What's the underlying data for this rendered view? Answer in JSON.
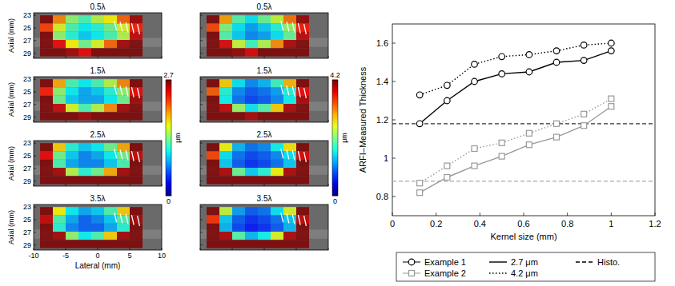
{
  "chart_data": [
    {
      "type": "heatmap",
      "title": "0.5λ",
      "xlim": [
        -10,
        10
      ],
      "ylim": [
        22.6,
        29.8
      ],
      "xticks": [
        -10,
        -5,
        0,
        5,
        10
      ],
      "yticks": [
        23,
        25,
        27,
        29
      ],
      "tick_labels": "y",
      "y_label": "Axial (mm)",
      "zlim": [
        0,
        2.7
      ],
      "x_edges": [
        -9,
        -7,
        -5,
        -3,
        -1,
        1,
        3,
        5,
        7
      ],
      "y_edges": [
        23,
        24.3,
        25.6,
        26.9,
        28.2,
        29.5
      ],
      "cells": [
        [
          2.7,
          2.0,
          1.4,
          1.2,
          1.5,
          1.7,
          2.1,
          2.6
        ],
        [
          2.2,
          1.6,
          1.2,
          1.0,
          1.1,
          1.3,
          1.6,
          2.3
        ],
        [
          2.7,
          1.4,
          1.1,
          0.9,
          1.0,
          1.2,
          1.5,
          2.5
        ],
        [
          2.7,
          2.4,
          1.7,
          1.3,
          1.6,
          2.1,
          2.6,
          2.7
        ],
        [
          2.7,
          2.7,
          2.6,
          2.4,
          2.7,
          2.7,
          2.7,
          2.7
        ]
      ]
    },
    {
      "type": "heatmap",
      "title": "1.5λ",
      "xlim": [
        -10,
        10
      ],
      "ylim": [
        22.6,
        29.8
      ],
      "xticks": [
        -10,
        -5,
        0,
        5,
        10
      ],
      "yticks": [
        23,
        25,
        27,
        29
      ],
      "tick_labels": "y",
      "y_label": "Axial (mm)",
      "zlim": [
        0,
        2.7
      ],
      "colorbar": {
        "ticks": [
          0,
          2.7
        ],
        "label": "μm"
      },
      "x_edges": [
        -9,
        -7,
        -5,
        -3,
        -1,
        1,
        3,
        5,
        7
      ],
      "y_edges": [
        23,
        24.3,
        25.6,
        26.9,
        28.2,
        29.5
      ],
      "cells": [
        [
          2.7,
          1.9,
          1.2,
          1.0,
          1.2,
          1.5,
          2.0,
          2.7
        ],
        [
          2.3,
          1.4,
          1.0,
          0.8,
          0.9,
          1.1,
          1.4,
          2.4
        ],
        [
          2.7,
          1.3,
          0.9,
          0.8,
          0.8,
          1.0,
          1.3,
          2.6
        ],
        [
          2.7,
          2.5,
          1.6,
          1.2,
          1.5,
          2.0,
          2.6,
          2.7
        ],
        [
          2.7,
          2.7,
          2.7,
          2.6,
          2.7,
          2.7,
          2.7,
          2.7
        ]
      ]
    },
    {
      "type": "heatmap",
      "title": "2.5λ",
      "xlim": [
        -10,
        10
      ],
      "ylim": [
        22.6,
        29.8
      ],
      "xticks": [
        -10,
        -5,
        0,
        5,
        10
      ],
      "yticks": [
        23,
        25,
        27,
        29
      ],
      "tick_labels": "y",
      "y_label": "Axial (mm)",
      "zlim": [
        0,
        2.7
      ],
      "x_edges": [
        -9,
        -7,
        -5,
        -3,
        -1,
        1,
        3,
        5,
        7
      ],
      "y_edges": [
        23,
        24.3,
        25.6,
        26.9,
        28.2,
        29.5
      ],
      "cells": [
        [
          2.7,
          1.8,
          1.1,
          0.9,
          1.0,
          1.3,
          1.9,
          2.7
        ],
        [
          2.4,
          1.3,
          0.9,
          0.7,
          0.8,
          1.0,
          1.3,
          2.5
        ],
        [
          2.7,
          1.2,
          0.8,
          0.7,
          0.7,
          0.9,
          1.2,
          2.7
        ],
        [
          2.7,
          2.6,
          1.5,
          1.1,
          1.3,
          1.9,
          2.6,
          2.7
        ],
        [
          2.7,
          2.7,
          2.7,
          2.7,
          2.7,
          2.7,
          2.7,
          2.7
        ]
      ]
    },
    {
      "type": "heatmap",
      "title": "3.5λ",
      "xlim": [
        -10,
        10
      ],
      "ylim": [
        22.6,
        29.8
      ],
      "xticks": [
        -10,
        -5,
        0,
        5,
        10
      ],
      "yticks": [
        23,
        25,
        27,
        29
      ],
      "tick_labels": true,
      "y_label": "Axial (mm)",
      "x_label": "Lateral (mm)",
      "zlim": [
        0,
        2.7
      ],
      "x_edges": [
        -9,
        -7,
        -5,
        -3,
        -1,
        1,
        3,
        5,
        7
      ],
      "y_edges": [
        23,
        24.3,
        25.6,
        26.9,
        28.2,
        29.5
      ],
      "cells": [
        [
          2.7,
          1.7,
          1.0,
          0.8,
          0.9,
          1.2,
          1.8,
          2.7
        ],
        [
          2.5,
          1.2,
          0.8,
          0.6,
          0.7,
          0.9,
          1.2,
          2.6
        ],
        [
          2.7,
          1.1,
          0.7,
          0.6,
          0.6,
          0.8,
          1.1,
          2.7
        ],
        [
          2.7,
          2.6,
          1.4,
          1.0,
          1.2,
          1.8,
          2.6,
          2.7
        ],
        [
          2.7,
          2.7,
          2.7,
          2.7,
          2.7,
          2.7,
          2.7,
          2.7
        ]
      ]
    },
    {
      "type": "heatmap",
      "title": "0.5λ",
      "xlim": [
        -10,
        10
      ],
      "ylim": [
        22.6,
        29.8
      ],
      "xticks": [
        -10,
        -5,
        0,
        5,
        10
      ],
      "yticks": [
        23,
        25,
        27,
        29
      ],
      "tick_labels": false,
      "zlim": [
        0,
        4.2
      ],
      "x_edges": [
        -9,
        -7,
        -5,
        -3,
        -1,
        1,
        3,
        5,
        7
      ],
      "y_edges": [
        23,
        24.3,
        25.6,
        26.9,
        28.2,
        29.5
      ],
      "cells": [
        [
          4.2,
          3.0,
          1.9,
          1.5,
          2.0,
          2.4,
          3.2,
          4.1
        ],
        [
          3.4,
          2.1,
          1.5,
          1.2,
          1.4,
          1.7,
          2.2,
          3.6
        ],
        [
          4.2,
          1.9,
          1.4,
          1.1,
          1.2,
          1.5,
          2.0,
          3.9
        ],
        [
          4.2,
          3.8,
          2.4,
          1.8,
          2.3,
          3.1,
          4.0,
          4.2
        ],
        [
          4.2,
          4.2,
          4.1,
          3.8,
          4.2,
          4.2,
          4.2,
          4.2
        ]
      ]
    },
    {
      "type": "heatmap",
      "title": "1.5λ",
      "xlim": [
        -10,
        10
      ],
      "ylim": [
        22.6,
        29.8
      ],
      "xticks": [
        -10,
        -5,
        0,
        5,
        10
      ],
      "yticks": [
        23,
        25,
        27,
        29
      ],
      "tick_labels": false,
      "zlim": [
        0,
        4.2
      ],
      "colorbar": {
        "ticks": [
          0,
          4.2
        ],
        "label": "μm"
      },
      "x_edges": [
        -9,
        -7,
        -5,
        -3,
        -1,
        1,
        3,
        5,
        7
      ],
      "y_edges": [
        23,
        24.3,
        25.6,
        26.9,
        28.2,
        29.5
      ],
      "cells": [
        [
          4.2,
          2.8,
          1.5,
          1.1,
          1.3,
          1.8,
          2.9,
          4.2
        ],
        [
          3.3,
          1.7,
          1.1,
          0.9,
          1.0,
          1.2,
          1.7,
          3.7
        ],
        [
          4.2,
          1.6,
          1.0,
          0.8,
          0.9,
          1.1,
          1.6,
          4.0
        ],
        [
          4.2,
          3.9,
          2.2,
          1.5,
          1.9,
          2.8,
          4.0,
          4.2
        ],
        [
          4.2,
          4.2,
          4.2,
          4.0,
          4.2,
          4.2,
          4.2,
          4.2
        ]
      ]
    },
    {
      "type": "heatmap",
      "title": "2.5λ",
      "xlim": [
        -10,
        10
      ],
      "ylim": [
        22.6,
        29.8
      ],
      "xticks": [
        -10,
        -5,
        0,
        5,
        10
      ],
      "yticks": [
        23,
        25,
        27,
        29
      ],
      "tick_labels": false,
      "zlim": [
        0,
        4.2
      ],
      "x_edges": [
        -9,
        -7,
        -5,
        -3,
        -1,
        1,
        3,
        5,
        7
      ],
      "y_edges": [
        23,
        24.3,
        25.6,
        26.9,
        28.2,
        29.5
      ],
      "cells": [
        [
          4.2,
          2.6,
          1.3,
          1.0,
          1.1,
          1.6,
          2.7,
          4.2
        ],
        [
          3.4,
          1.5,
          1.0,
          0.8,
          0.9,
          1.1,
          1.5,
          3.8
        ],
        [
          4.2,
          1.4,
          0.9,
          0.7,
          0.8,
          1.0,
          1.4,
          4.2
        ],
        [
          4.2,
          4.0,
          2.0,
          1.4,
          1.7,
          2.6,
          4.0,
          4.2
        ],
        [
          4.2,
          4.2,
          4.2,
          4.2,
          4.2,
          4.2,
          4.2,
          4.2
        ]
      ]
    },
    {
      "type": "heatmap",
      "title": "3.5λ",
      "xlim": [
        -10,
        10
      ],
      "ylim": [
        22.6,
        29.8
      ],
      "xticks": [
        -10,
        -5,
        0,
        5,
        10
      ],
      "yticks": [
        23,
        25,
        27,
        29
      ],
      "tick_labels": false,
      "zlim": [
        0,
        4.2
      ],
      "x_edges": [
        -9,
        -7,
        -5,
        -3,
        -1,
        1,
        3,
        5,
        7
      ],
      "y_edges": [
        23,
        24.3,
        25.6,
        26.9,
        28.2,
        29.5
      ],
      "cells": [
        [
          4.2,
          2.4,
          1.2,
          0.9,
          1.0,
          1.5,
          2.5,
          4.2
        ],
        [
          3.5,
          1.4,
          0.9,
          0.7,
          0.8,
          1.0,
          1.4,
          3.9
        ],
        [
          4.2,
          1.3,
          0.8,
          0.6,
          0.7,
          0.9,
          1.3,
          4.2
        ],
        [
          4.2,
          4.0,
          1.9,
          1.3,
          1.6,
          2.5,
          4.0,
          4.2
        ],
        [
          4.2,
          4.2,
          4.2,
          4.2,
          4.2,
          4.2,
          4.2,
          4.2
        ]
      ]
    },
    {
      "type": "line",
      "x_label": "Kernel size (mm)",
      "y_label": "ARFI–Measured Thickness",
      "xlim": [
        0,
        1.2
      ],
      "ylim": [
        0.7,
        1.7
      ],
      "xticks": [
        0,
        0.2,
        0.4,
        0.6,
        0.8,
        1,
        1.2
      ],
      "yticks": [
        0.8,
        1,
        1.2,
        1.4,
        1.6
      ],
      "x": [
        0.125,
        0.25,
        0.375,
        0.5,
        0.625,
        0.75,
        0.875,
        1.0
      ],
      "series": [
        {
          "color": "#000000",
          "marker": "circle",
          "line_style": "solid",
          "values": [
            1.18,
            1.3,
            1.4,
            1.44,
            1.45,
            1.5,
            1.51,
            1.56
          ]
        },
        {
          "color": "#000000",
          "marker": "circle",
          "line_style": "dotted",
          "values": [
            1.33,
            1.38,
            1.49,
            1.53,
            1.54,
            1.56,
            1.59,
            1.6
          ]
        },
        {
          "color": "#999999",
          "marker": "square",
          "line_style": "solid",
          "values": [
            0.82,
            0.9,
            0.96,
            1.01,
            1.07,
            1.11,
            1.17,
            1.27
          ]
        },
        {
          "color": "#999999",
          "marker": "square",
          "line_style": "dotted",
          "values": [
            0.87,
            0.96,
            1.05,
            1.08,
            1.13,
            1.18,
            1.23,
            1.31
          ]
        }
      ],
      "reference_lines": [
        {
          "value": 1.18,
          "color": "#333333",
          "line_style": "dashed"
        },
        {
          "value": 0.88,
          "color": "#aaaaaa",
          "line_style": "dashed"
        }
      ],
      "legend": "bottom",
      "legend_items": [
        {
          "label": "Example 1",
          "marker": "circle",
          "color": "#000000"
        },
        {
          "label": "Example 2",
          "marker": "square",
          "color": "#999999"
        },
        {
          "label": "2.7 μm",
          "line_style": "solid",
          "color": "#000000"
        },
        {
          "label": "4.2 μm",
          "line_style": "dotted",
          "color": "#000000"
        },
        {
          "label": "Histo.",
          "line_style": "dashed",
          "color": "#000000"
        }
      ]
    }
  ]
}
